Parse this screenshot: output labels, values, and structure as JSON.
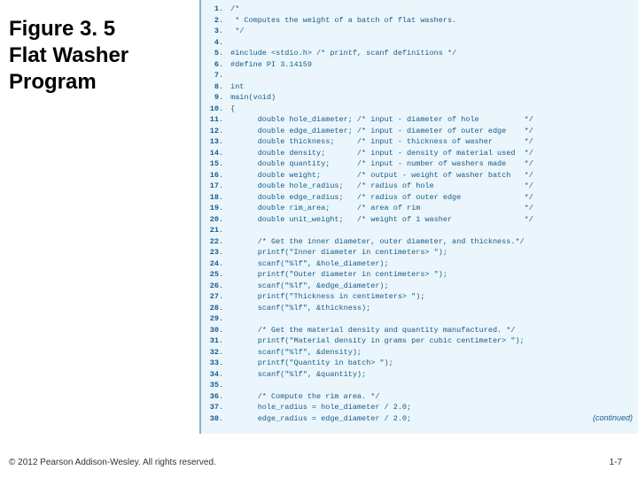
{
  "heading": {
    "line1": "Figure 3. 5",
    "line2": "Flat Washer",
    "line3": "Program"
  },
  "code": {
    "bg_color": "#eaf6fb",
    "border_color": "#7fb8c9",
    "text_color": "#1a5a8a",
    "font_family": "Courier New",
    "font_size_pt": 6.5,
    "lines": [
      {
        "n": "1",
        "t": "/*"
      },
      {
        "n": "2",
        "t": " * Computes the weight of a batch of flat washers."
      },
      {
        "n": "3",
        "t": " */"
      },
      {
        "n": "4",
        "t": ""
      },
      {
        "n": "5",
        "t": "#include <stdio.h> /* printf, scanf definitions */"
      },
      {
        "n": "6",
        "t": "#define PI 3.14159"
      },
      {
        "n": "7",
        "t": ""
      },
      {
        "n": "8",
        "t": "int"
      },
      {
        "n": "9",
        "t": "main(void)"
      },
      {
        "n": "10",
        "t": "{"
      },
      {
        "n": "11",
        "t": "      double hole_diameter; /* input - diameter of hole          */"
      },
      {
        "n": "12",
        "t": "      double edge_diameter; /* input - diameter of outer edge    */"
      },
      {
        "n": "13",
        "t": "      double thickness;     /* input - thickness of washer       */"
      },
      {
        "n": "14",
        "t": "      double density;       /* input - density of material used  */"
      },
      {
        "n": "15",
        "t": "      double quantity;      /* input - number of washers made    */"
      },
      {
        "n": "16",
        "t": "      double weight;        /* output - weight of washer batch   */"
      },
      {
        "n": "17",
        "t": "      double hole_radius;   /* radius of hole                    */"
      },
      {
        "n": "18",
        "t": "      double edge_radius;   /* radius of outer edge              */"
      },
      {
        "n": "19",
        "t": "      double rim_area;      /* area of rim                       */"
      },
      {
        "n": "20",
        "t": "      double unit_weight;   /* weight of 1 washer                */"
      },
      {
        "n": "21",
        "t": ""
      },
      {
        "n": "22",
        "t": "      /* Get the inner diameter, outer diameter, and thickness.*/"
      },
      {
        "n": "23",
        "t": "      printf(\"Inner diameter in centimeters> \");"
      },
      {
        "n": "24",
        "t": "      scanf(\"%lf\", &hole_diameter);"
      },
      {
        "n": "25",
        "t": "      printf(\"Outer diameter in centimeters> \");"
      },
      {
        "n": "26",
        "t": "      scanf(\"%lf\", &edge_diameter);"
      },
      {
        "n": "27",
        "t": "      printf(\"Thickness in centimeters> \");"
      },
      {
        "n": "28",
        "t": "      scanf(\"%lf\", &thickness);"
      },
      {
        "n": "29",
        "t": ""
      },
      {
        "n": "30",
        "t": "      /* Get the material density and quantity manufactured. */"
      },
      {
        "n": "31",
        "t": "      printf(\"Material density in grams per cubic centimeter> \");"
      },
      {
        "n": "32",
        "t": "      scanf(\"%lf\", &density);"
      },
      {
        "n": "33",
        "t": "      printf(\"Quantity in batch> \");"
      },
      {
        "n": "34",
        "t": "      scanf(\"%lf\", &quantity);"
      },
      {
        "n": "35",
        "t": ""
      },
      {
        "n": "36",
        "t": "      /* Compute the rim area. */"
      },
      {
        "n": "37",
        "t": "      hole_radius = hole_diameter / 2.0;"
      },
      {
        "n": "38",
        "t": "      edge_radius = edge_diameter / 2.0;"
      }
    ],
    "continued_label": "(continued)"
  },
  "footer": {
    "copyright": "© 2012 Pearson Addison-Wesley. All rights reserved.",
    "pageno": "1-7"
  }
}
